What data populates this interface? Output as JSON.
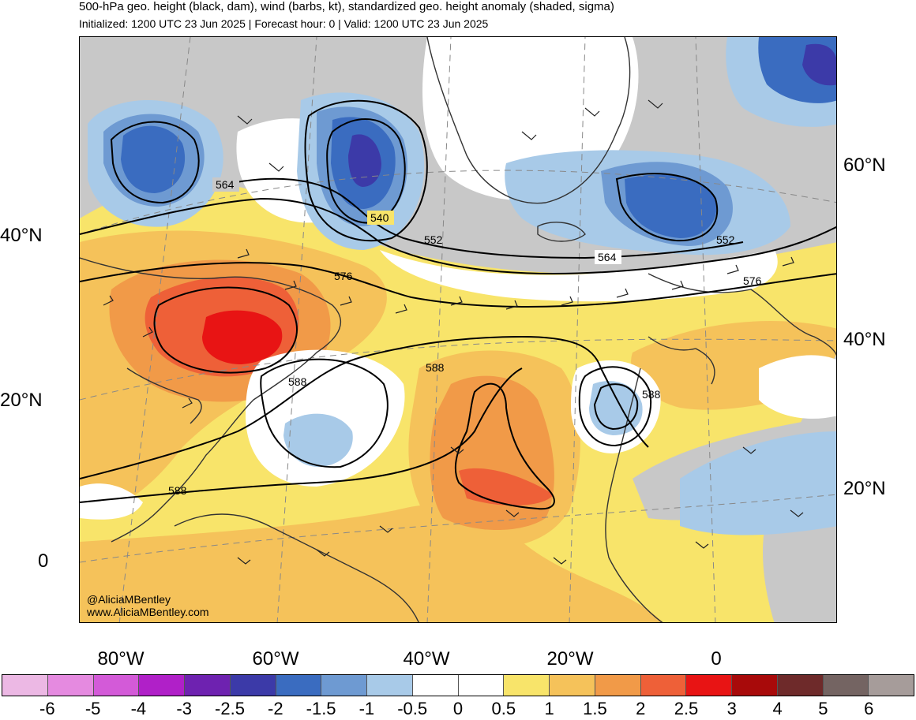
{
  "title": "500-hPa geo. height (black, dam), wind (barbs, kt), standardized geo. height anomaly (shaded, sigma)",
  "subtitle": "Initialized: 1200 UTC 23 Jun 2025 | Forecast hour: 0 | Valid: 1200 UTC 23 Jun 2025",
  "lat_left": [
    "40°N",
    "20°N",
    "0"
  ],
  "lat_right": [
    "60°N",
    "40°N",
    "20°N"
  ],
  "lon_labels": [
    "80°W",
    "60°W",
    "40°W",
    "20°W",
    "0"
  ],
  "contour_labels": [
    "564",
    "540",
    "552",
    "564",
    "552",
    "576",
    "576",
    "588",
    "588",
    "588",
    "588"
  ],
  "credit": [
    "@AliciaMBentley",
    "www.AliciaMBentley.com"
  ],
  "colorbar": {
    "labels": [
      "-6",
      "-5",
      "-4",
      "-3",
      "-2.5",
      "-2",
      "-1.5",
      "-1",
      "-0.5",
      "0",
      "0.5",
      "1",
      "1.5",
      "2",
      "2.5",
      "3",
      "4",
      "5",
      "6"
    ],
    "colors": [
      "#ecb8e4",
      "#e58ae0",
      "#d35ad8",
      "#b020c8",
      "#6e22b0",
      "#3c3aa8",
      "#3a6cc0",
      "#6e9ad2",
      "#a8cae8",
      "#ffffff",
      "#ffffff",
      "#f8e46a",
      "#f5c25a",
      "#f19a48",
      "#ee6038",
      "#e81414",
      "#a80a0a",
      "#6e2a2a",
      "#746462",
      "#a69c9a"
    ]
  },
  "map_colors": {
    "gray": "#c8c8c8",
    "blue_light": "#a8cae8",
    "blue_mid": "#6e9ad2",
    "blue_dark": "#3a6cc0",
    "blue_deep": "#3c3aa8",
    "yellow": "#f8e46a",
    "orange_light": "#f5c25a",
    "orange": "#f19a48",
    "red_orange": "#ee6038",
    "red": "#e81414"
  }
}
